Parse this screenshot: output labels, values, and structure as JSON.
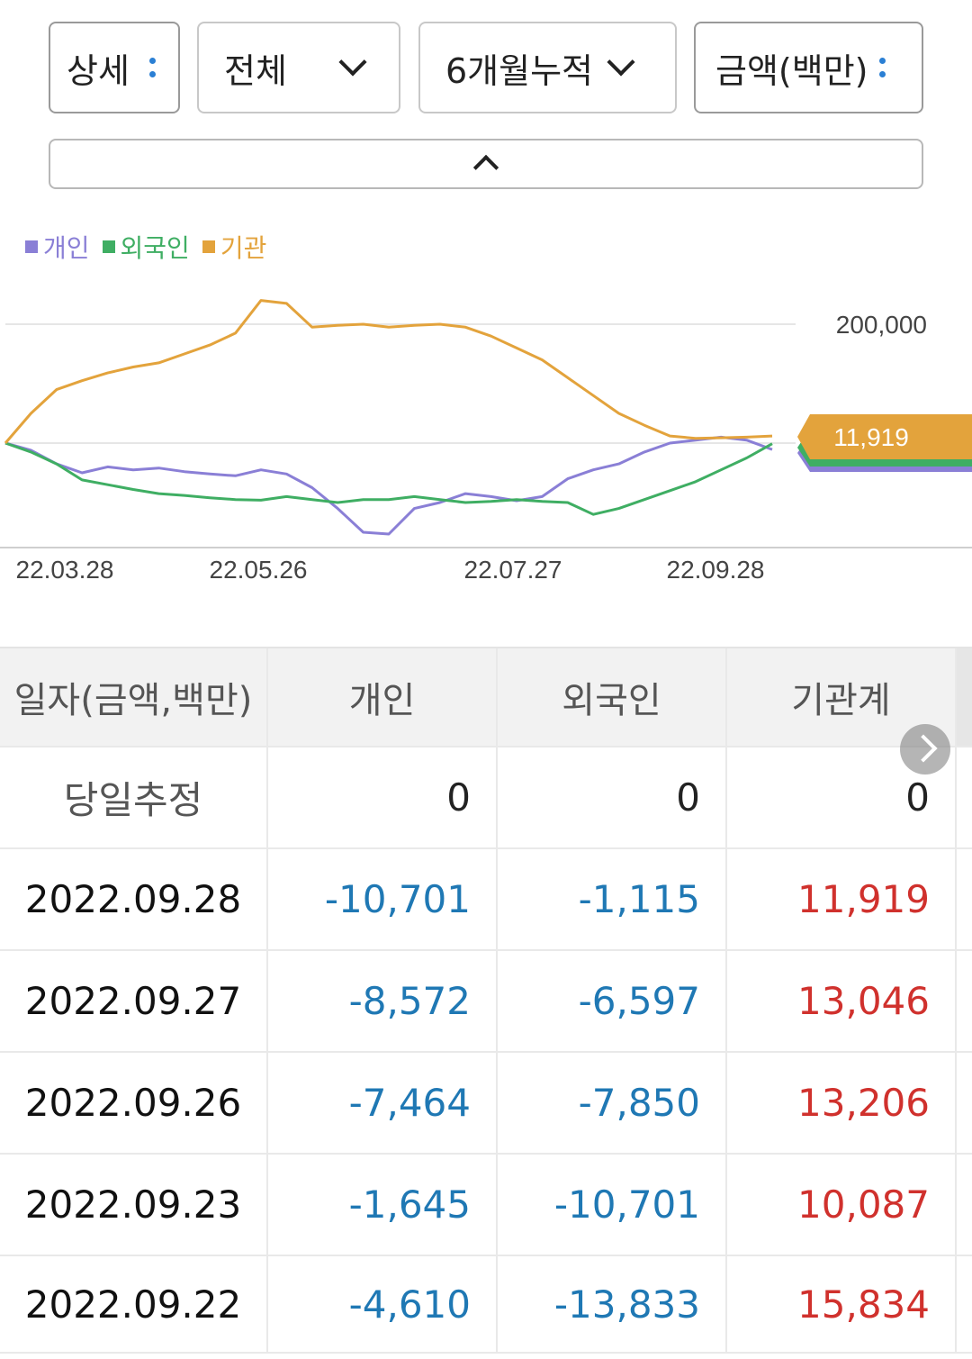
{
  "filters": {
    "detail": "상세",
    "all": "전체",
    "period": "6개월누적",
    "unit": "금액(백만)"
  },
  "legend": [
    {
      "label": "개인",
      "color": "#8a7fd6"
    },
    {
      "label": "외국인",
      "color": "#3fae63"
    },
    {
      "label": "기관",
      "color": "#e3a33c"
    }
  ],
  "colors": {
    "individual": "#8a7fd6",
    "foreign": "#3fae63",
    "institution": "#e3a33c",
    "negative": "#1f78b4",
    "positive": "#d0312d"
  },
  "chart_data": {
    "type": "line",
    "ytick_label": "200,000",
    "ytick_value": 200000,
    "last_value_label": "11,919",
    "x_tick_labels": [
      "22.03.28",
      "22.05.26",
      "22.07.27",
      "22.09.28"
    ],
    "series": [
      {
        "name": "개인",
        "values": [
          0,
          -12000,
          -35000,
          -50000,
          -40000,
          -45000,
          -42000,
          -48000,
          -52000,
          -55000,
          -45000,
          -52000,
          -75000,
          -110000,
          -150000,
          -153000,
          -110000,
          -100000,
          -85000,
          -90000,
          -97000,
          -90000,
          -60000,
          -45000,
          -35000,
          -15000,
          0,
          5000,
          10000,
          5000,
          -10701
        ]
      },
      {
        "name": "외국인",
        "values": [
          0,
          -15000,
          -35000,
          -62000,
          -70000,
          -78000,
          -85000,
          -88000,
          -92000,
          -95000,
          -96000,
          -90000,
          -95000,
          -100000,
          -95000,
          -95000,
          -90000,
          -95000,
          -100000,
          -98000,
          -95000,
          -98000,
          -100000,
          -120000,
          -110000,
          -95000,
          -80000,
          -65000,
          -45000,
          -25000,
          -1115
        ]
      },
      {
        "name": "기관",
        "values": [
          0,
          50000,
          90000,
          105000,
          118000,
          128000,
          135000,
          150000,
          165000,
          185000,
          240000,
          235000,
          195000,
          198000,
          200000,
          195000,
          198000,
          200000,
          195000,
          180000,
          160000,
          140000,
          110000,
          80000,
          50000,
          30000,
          11919,
          8000,
          9000,
          10000,
          11919
        ]
      }
    ]
  },
  "table": {
    "headers": [
      "일자(금액,백만)",
      "개인",
      "외국인",
      "기관계"
    ],
    "rows": [
      {
        "date": "당일추정",
        "individual": "0",
        "foreign": "0",
        "institution": "0"
      },
      {
        "date": "2022.09.28",
        "individual": "-10,701",
        "foreign": "-1,115",
        "institution": "11,919"
      },
      {
        "date": "2022.09.27",
        "individual": "-8,572",
        "foreign": "-6,597",
        "institution": "13,046"
      },
      {
        "date": "2022.09.26",
        "individual": "-7,464",
        "foreign": "-7,850",
        "institution": "13,206"
      },
      {
        "date": "2022.09.23",
        "individual": "-1,645",
        "foreign": "-10,701",
        "institution": "10,087"
      },
      {
        "date": "2022.09.22",
        "individual": "-4,610",
        "foreign": "-13,833",
        "institution": "15,834"
      }
    ]
  }
}
